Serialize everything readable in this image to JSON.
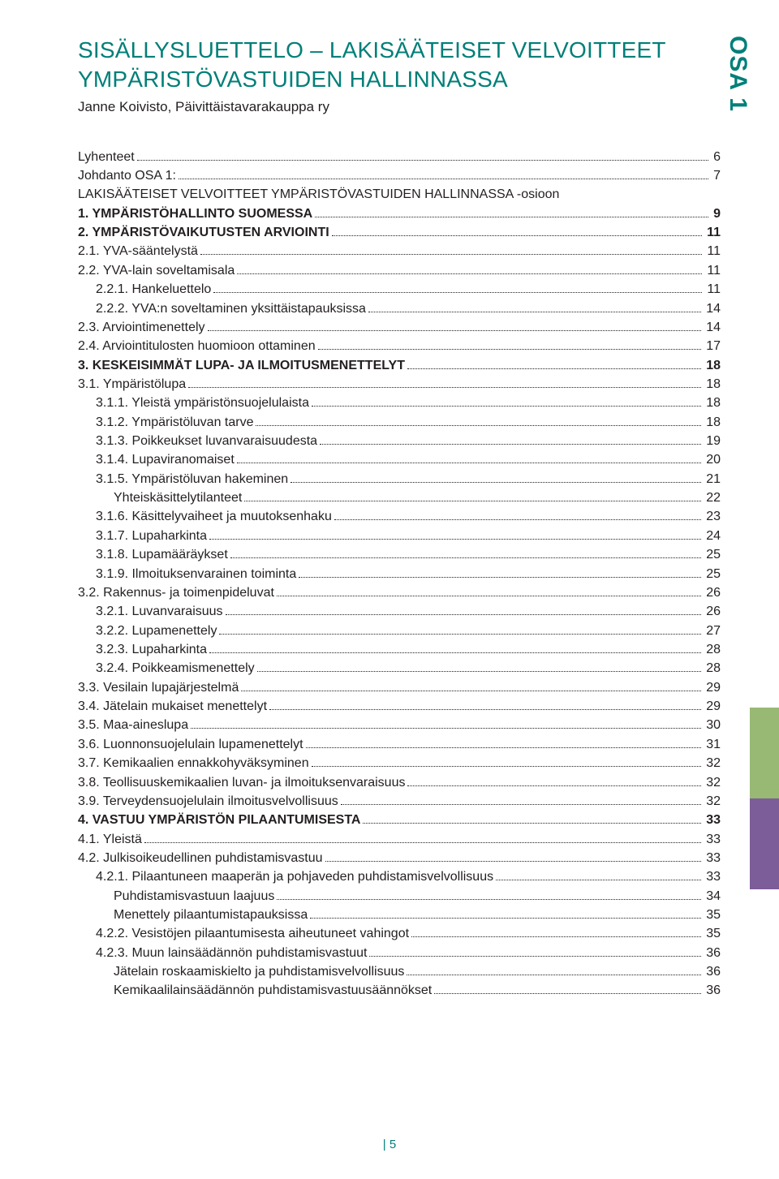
{
  "sideTab": "OSA 1",
  "title": "SISÄLLYSLUETTELO – LAKISÄÄTEISET VELVOITTEET YMPÄRISTÖVASTUIDEN HALLINNASSA",
  "subtitle": "Janne Koivisto, Päivittäistavarakauppa ry",
  "footer": "|  5",
  "colors": {
    "brand": "#007f78",
    "text": "#231f20",
    "accentGreen": "#98b973",
    "accentPurple": "#7c5d9a",
    "background": "#ffffff"
  },
  "toc": [
    {
      "label": "Lyhenteet",
      "page": "6",
      "indent": 0,
      "bold": false
    },
    {
      "label": "Johdanto OSA 1:",
      "page": "7",
      "indent": 0,
      "bold": false
    },
    {
      "label": "LAKISÄÄTEISET VELVOITTEET YMPÄRISTÖVASTUIDEN HALLINNASSA -osioon",
      "page": "",
      "indent": 0,
      "bold": false
    },
    {
      "label": "1. YMPÄRISTÖHALLINTO SUOMESSA",
      "page": "9",
      "indent": 0,
      "bold": true
    },
    {
      "label": "2. YMPÄRISTÖVAIKUTUSTEN ARVIOINTI",
      "page": "11",
      "indent": 0,
      "bold": true
    },
    {
      "label": "2.1. YVA-sääntelystä",
      "page": "11",
      "indent": 0,
      "bold": false
    },
    {
      "label": "2.2. YVA-lain soveltamisala",
      "page": "11",
      "indent": 0,
      "bold": false
    },
    {
      "label": "2.2.1. Hankeluettelo",
      "page": "11",
      "indent": 1,
      "bold": false
    },
    {
      "label": "2.2.2. YVA:n soveltaminen yksittäistapauksissa",
      "page": "14",
      "indent": 1,
      "bold": false
    },
    {
      "label": "2.3. Arviointimenettely",
      "page": "14",
      "indent": 0,
      "bold": false
    },
    {
      "label": "2.4. Arviointitulosten huomioon ottaminen",
      "page": "17",
      "indent": 0,
      "bold": false
    },
    {
      "label": "3. KESKEISIMMÄT LUPA- JA ILMOITUSMENETTELYT",
      "page": "18",
      "indent": 0,
      "bold": true
    },
    {
      "label": "3.1. Ympäristölupa",
      "page": "18",
      "indent": 0,
      "bold": false
    },
    {
      "label": "3.1.1. Yleistä ympäristönsuojelulaista",
      "page": "18",
      "indent": 1,
      "bold": false
    },
    {
      "label": "3.1.2. Ympäristöluvan tarve",
      "page": "18",
      "indent": 1,
      "bold": false
    },
    {
      "label": "3.1.3. Poikkeukset luvanvaraisuudesta",
      "page": "19",
      "indent": 1,
      "bold": false
    },
    {
      "label": "3.1.4. Lupaviranomaiset",
      "page": "20",
      "indent": 1,
      "bold": false
    },
    {
      "label": "3.1.5. Ympäristöluvan hakeminen",
      "page": "21",
      "indent": 1,
      "bold": false
    },
    {
      "label": "Yhteiskäsittelytilanteet",
      "page": "22",
      "indent": 2,
      "bold": false
    },
    {
      "label": "3.1.6. Käsittelyvaiheet ja muutoksenhaku",
      "page": "23",
      "indent": 1,
      "bold": false
    },
    {
      "label": "3.1.7. Lupaharkinta",
      "page": "24",
      "indent": 1,
      "bold": false
    },
    {
      "label": "3.1.8. Lupamääräykset",
      "page": "25",
      "indent": 1,
      "bold": false
    },
    {
      "label": "3.1.9. Ilmoituksenvarainen toiminta",
      "page": "25",
      "indent": 1,
      "bold": false
    },
    {
      "label": "3.2. Rakennus- ja toimenpideluvat",
      "page": "26",
      "indent": 0,
      "bold": false
    },
    {
      "label": "3.2.1. Luvanvaraisuus",
      "page": "26",
      "indent": 1,
      "bold": false
    },
    {
      "label": "3.2.2. Lupamenettely",
      "page": "27",
      "indent": 1,
      "bold": false
    },
    {
      "label": "3.2.3. Lupaharkinta",
      "page": "28",
      "indent": 1,
      "bold": false
    },
    {
      "label": "3.2.4. Poikkeamismenettely",
      "page": "28",
      "indent": 1,
      "bold": false
    },
    {
      "label": "3.3. Vesilain lupajärjestelmä",
      "page": "29",
      "indent": 0,
      "bold": false
    },
    {
      "label": "3.4. Jätelain mukaiset menettelyt",
      "page": "29",
      "indent": 0,
      "bold": false
    },
    {
      "label": "3.5. Maa-aineslupa",
      "page": "30",
      "indent": 0,
      "bold": false
    },
    {
      "label": "3.6. Luonnonsuojelulain lupamenettelyt",
      "page": "31",
      "indent": 0,
      "bold": false
    },
    {
      "label": "3.7. Kemikaalien ennakkohyväksyminen",
      "page": "32",
      "indent": 0,
      "bold": false
    },
    {
      "label": "3.8. Teollisuuskemikaalien luvan- ja ilmoituksenvaraisuus",
      "page": "32",
      "indent": 0,
      "bold": false
    },
    {
      "label": "3.9. Terveydensuojelulain ilmoitusvelvollisuus",
      "page": "32",
      "indent": 0,
      "bold": false
    },
    {
      "label": "4. VASTUU YMPÄRISTÖN PILAANTUMISESTA",
      "page": "33",
      "indent": 0,
      "bold": true
    },
    {
      "label": "4.1. Yleistä",
      "page": "33",
      "indent": 0,
      "bold": false
    },
    {
      "label": "4.2. Julkisoikeudellinen puhdistamisvastuu",
      "page": "33",
      "indent": 0,
      "bold": false
    },
    {
      "label": "4.2.1. Pilaantuneen maaperän ja pohjaveden puhdistamisvelvollisuus",
      "page": "33",
      "indent": 1,
      "bold": false
    },
    {
      "label": "Puhdistamisvastuun laajuus",
      "page": "34",
      "indent": 2,
      "bold": false
    },
    {
      "label": "Menettely pilaantumistapauksissa",
      "page": "35",
      "indent": 2,
      "bold": false
    },
    {
      "label": "4.2.2. Vesistöjen pilaantumisesta aiheutuneet vahingot",
      "page": "35",
      "indent": 1,
      "bold": false
    },
    {
      "label": "4.2.3. Muun lainsäädännön puhdistamisvastuut",
      "page": "36",
      "indent": 1,
      "bold": false
    },
    {
      "label": "Jätelain roskaamiskielto ja puhdistamisvelvollisuus",
      "page": "36",
      "indent": 2,
      "bold": false
    },
    {
      "label": "Kemikaalilainsäädännön puhdistamisvastuusäännökset",
      "page": "36",
      "indent": 2,
      "bold": false
    }
  ]
}
